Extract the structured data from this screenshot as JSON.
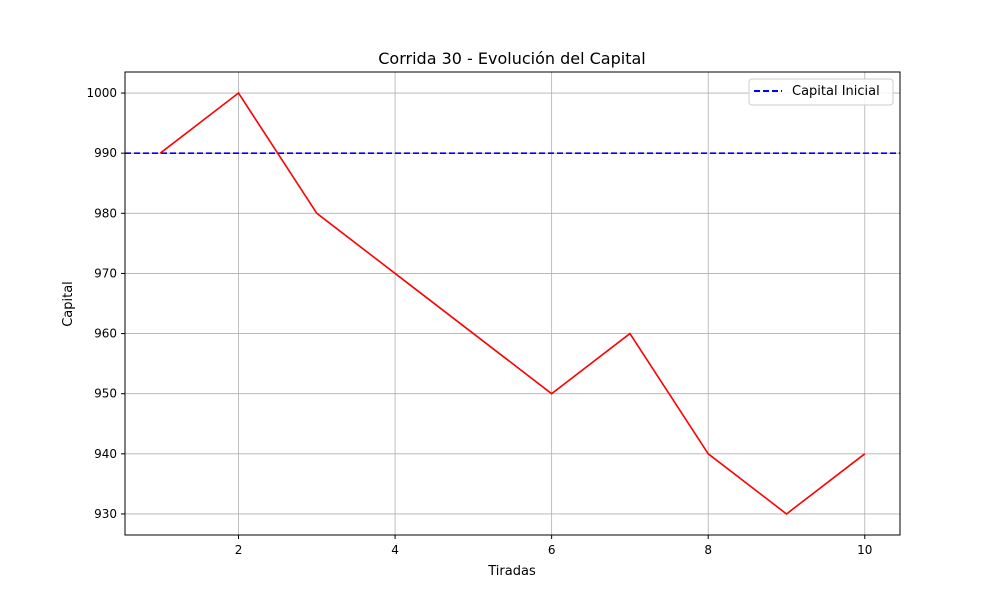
{
  "chart_data": {
    "type": "line",
    "title": "Corrida 30 - Evolución del Capital",
    "xlabel": "Tiradas",
    "ylabel": "Capital",
    "xlim": [
      0.55,
      10.45
    ],
    "ylim": [
      926.5,
      1003.5
    ],
    "xticks": [
      2,
      4,
      6,
      8,
      10
    ],
    "yticks": [
      930,
      940,
      950,
      960,
      970,
      980,
      990,
      1000
    ],
    "grid": true,
    "legend_position": "top-right",
    "series": [
      {
        "x": [
          1,
          2,
          3,
          4,
          5,
          6,
          7,
          8,
          9,
          10
        ],
        "values": [
          990,
          1000,
          980,
          970,
          960,
          950,
          960,
          940,
          930,
          940
        ],
        "color": "#ff0000",
        "style": "solid"
      }
    ],
    "reference_lines": [
      {
        "name": "Capital Inicial",
        "y": 990,
        "color": "#0000ff",
        "style": "dashed"
      }
    ]
  }
}
